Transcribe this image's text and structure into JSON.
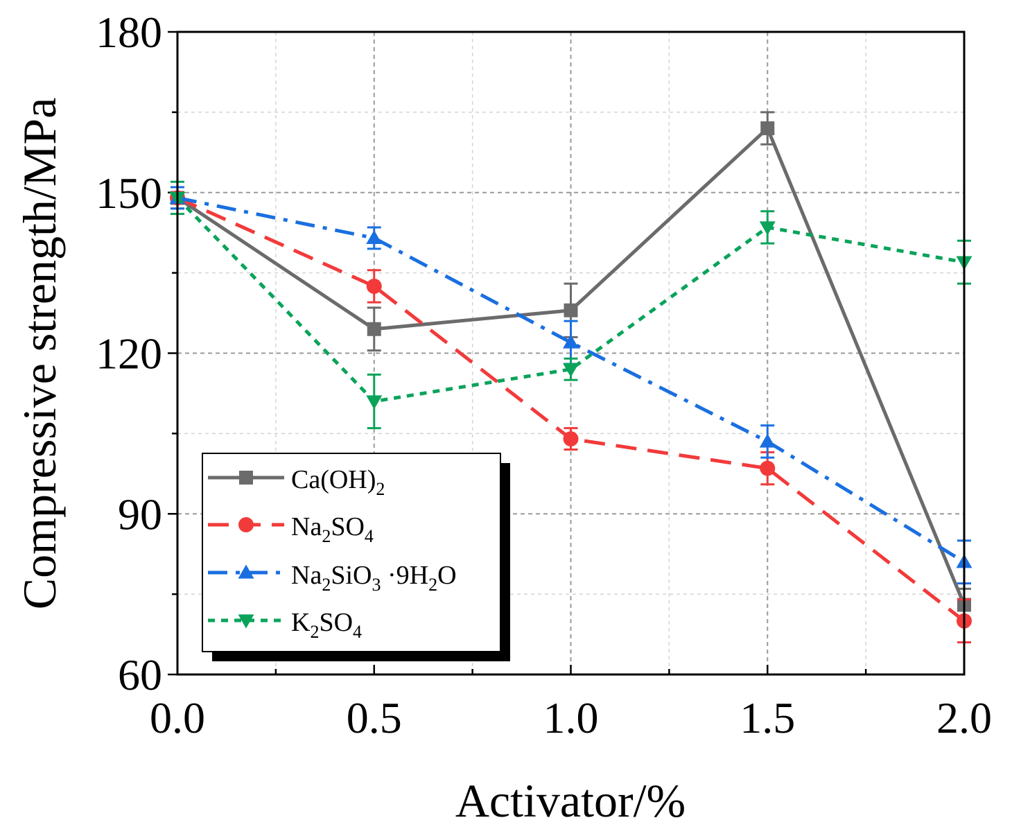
{
  "chart_data": {
    "type": "line",
    "title": "",
    "xlabel": "Activator/%",
    "ylabel": "Compressive strength/MPa",
    "xlim": [
      0,
      2
    ],
    "ylim": [
      60,
      180
    ],
    "xticks": [
      "0.0",
      "0.5",
      "1.0",
      "1.5",
      "2.0"
    ],
    "yticks": [
      "60",
      "90",
      "120",
      "150",
      "180"
    ],
    "grid": true,
    "legend_position": "bottom-left",
    "x": [
      0,
      0.5,
      1.0,
      1.5,
      2.0
    ],
    "series": [
      {
        "name": "Ca(OH)2",
        "legend": {
          "base": "Ca(OH)",
          "sub": "2"
        },
        "color": "#6b6b6b",
        "marker": "square",
        "dash": "solid",
        "values": [
          149,
          124.5,
          128,
          162,
          73
        ],
        "errors": [
          2,
          4,
          5,
          3,
          3
        ]
      },
      {
        "name": "Na2SO4",
        "legend": {
          "a": "Na",
          "b": "2",
          "c": "SO",
          "d": "4"
        },
        "color": "#f23a3a",
        "marker": "circle",
        "dash": "dashed",
        "values": [
          149,
          132.5,
          104,
          98.5,
          70
        ],
        "errors": [
          2,
          3,
          2,
          3,
          4
        ]
      },
      {
        "name": "Na2SiO3 ·9H2O",
        "legend": {
          "a": "Na",
          "b": "2",
          "c": "SiO",
          "d": "3",
          "e": " ·9H",
          "f": "2",
          "g": "O"
        },
        "color": "#1a6fe0",
        "marker": "triangle-up",
        "dash": "dashdot",
        "values": [
          149,
          141.5,
          122,
          103.5,
          81
        ],
        "errors": [
          2,
          2,
          4,
          3,
          4
        ]
      },
      {
        "name": "K2SO4",
        "legend": {
          "a": "K",
          "b": "2",
          "c": "SO",
          "d": "4"
        },
        "color": "#0aa35a",
        "marker": "triangle-down",
        "dash": "dotted",
        "values": [
          149,
          111,
          117,
          143.5,
          137
        ],
        "errors": [
          3,
          5,
          2,
          3,
          4
        ]
      }
    ]
  }
}
